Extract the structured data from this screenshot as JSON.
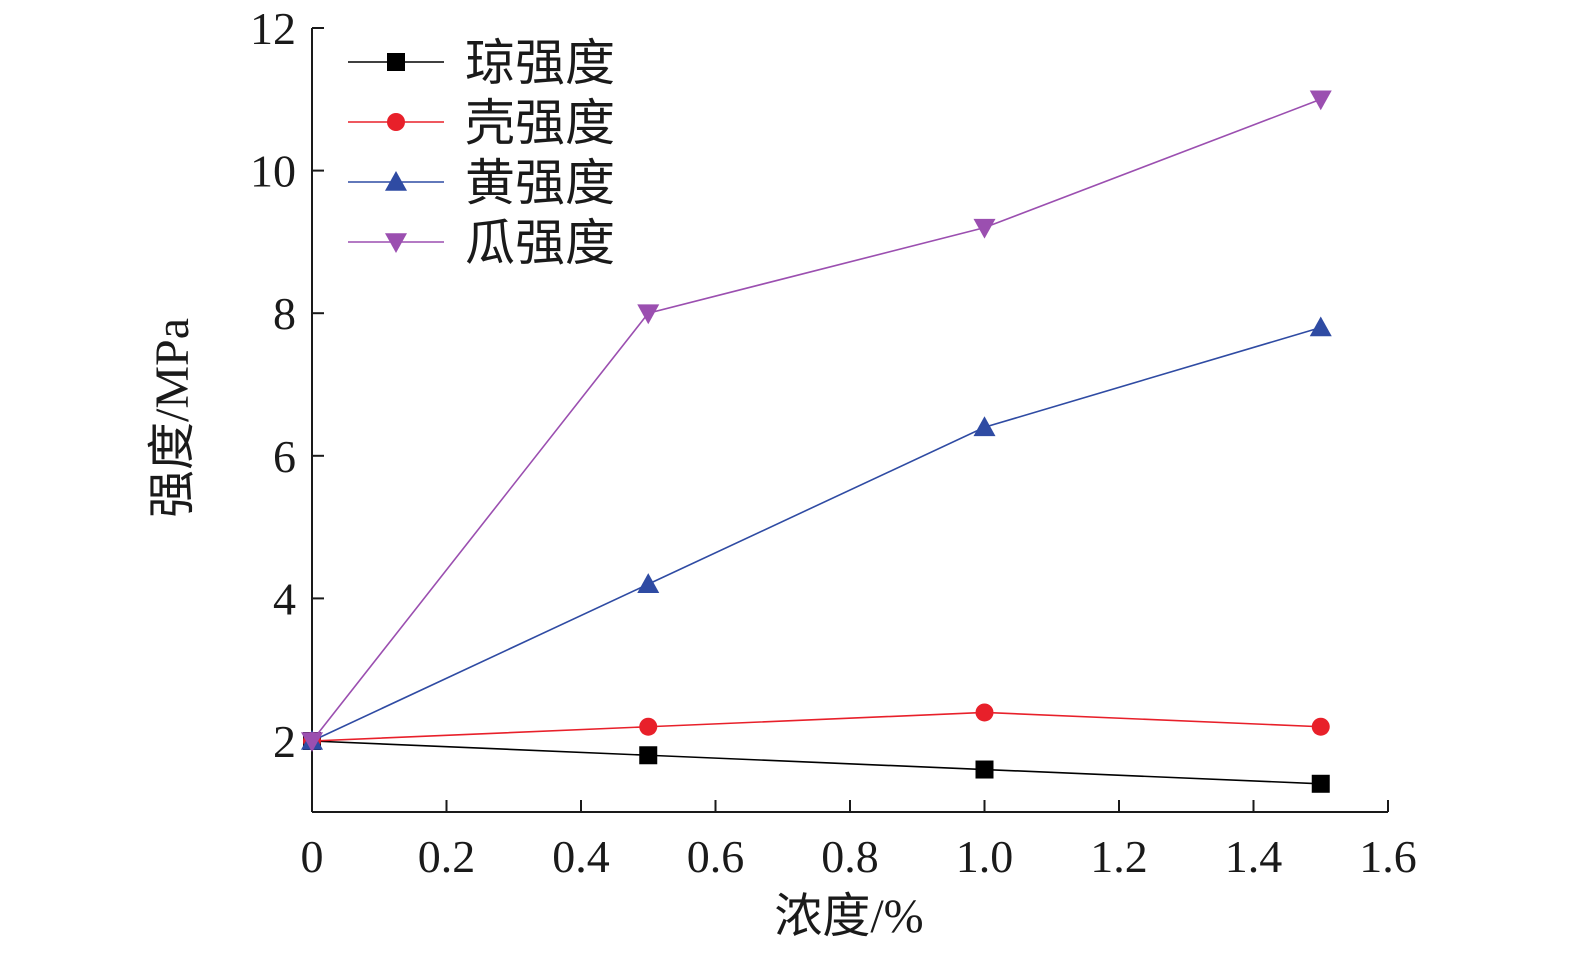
{
  "chart_data": {
    "type": "line",
    "xlabel": "浓度/%",
    "ylabel": "强度/MPa",
    "xlim": [
      0,
      1.6
    ],
    "ylim": [
      1,
      12
    ],
    "x_ticks": [
      "0",
      "0.2",
      "0.4",
      "0.6",
      "0.8",
      "1.0",
      "1.2",
      "1.4",
      "1.6"
    ],
    "y_ticks": [
      "2",
      "4",
      "6",
      "8",
      "10",
      "12"
    ],
    "grid": false,
    "legend_position": "top-left",
    "x": [
      0,
      0.5,
      1.0,
      1.5
    ],
    "series": [
      {
        "name": "琼强度",
        "values": [
          2.0,
          1.8,
          1.6,
          1.4
        ],
        "color": "#000000",
        "marker": "square"
      },
      {
        "name": "壳强度",
        "values": [
          2.0,
          2.2,
          2.4,
          2.2
        ],
        "color": "#e8202a",
        "marker": "circle"
      },
      {
        "name": "黄强度",
        "values": [
          2.0,
          4.2,
          6.4,
          7.8
        ],
        "color": "#2f4ba3",
        "marker": "triangle-up"
      },
      {
        "name": "瓜强度",
        "values": [
          2.0,
          8.0,
          9.2,
          11.0
        ],
        "color": "#9b4fb0",
        "marker": "triangle-down"
      }
    ]
  }
}
